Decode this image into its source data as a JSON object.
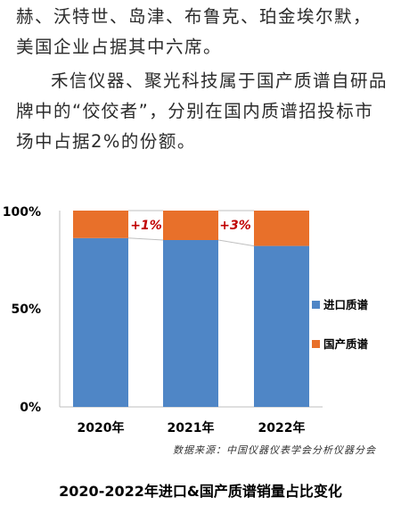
{
  "article": {
    "para1": "赫、沃特世、岛津、布鲁克、珀金埃尔默，美国企业占据其中六席。",
    "para2": "禾信仪器、聚光科技属于国产质谱自研品牌中的“佼佼者”，分别在国内质谱招投标市场中占据2%的份额。"
  },
  "chart_data": {
    "type": "bar",
    "stacked": true,
    "normalized": true,
    "categories": [
      "2020年",
      "2021年",
      "2022年"
    ],
    "series": [
      {
        "name": "进口质谱",
        "color": "#4f86c6",
        "values": [
          86,
          85,
          82
        ]
      },
      {
        "name": "国产质谱",
        "color": "#e8702a",
        "values": [
          14,
          15,
          18
        ]
      }
    ],
    "yticks": [
      "0%",
      "50%",
      "100%"
    ],
    "ylim": [
      0,
      100
    ],
    "annotations": [
      "+1%",
      "+3%"
    ],
    "legend_position": "right",
    "grid": false
  },
  "source": "数据来源：中国仪器仪表学会分析仪器分会",
  "caption": "2020-2022年进口&国产质谱销量占比变化"
}
